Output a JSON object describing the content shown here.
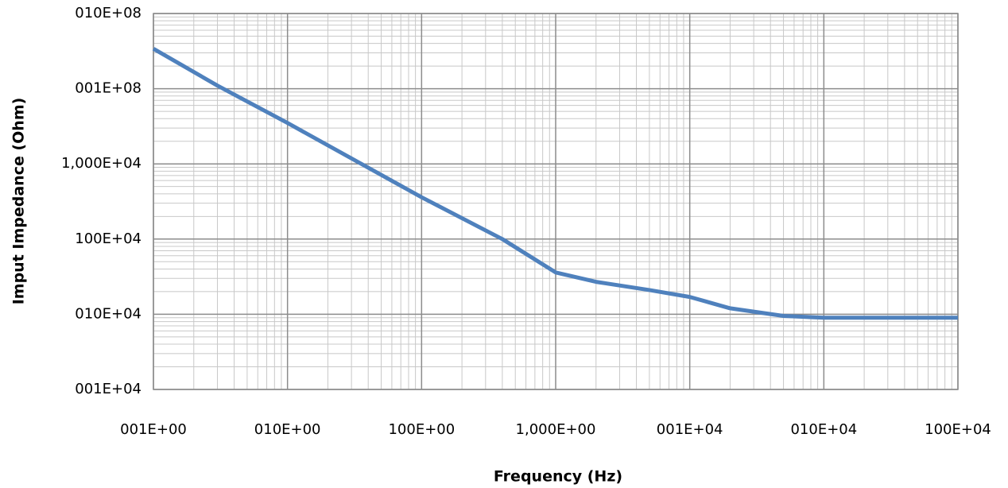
{
  "chart_data": {
    "type": "line",
    "x_label": "Frequency (Hz)",
    "y_label": "Imput Impedance (Ohm)",
    "x_log": true,
    "y_log": true,
    "grid": true,
    "minor_grid": true,
    "xlim": [
      1,
      1000000
    ],
    "ylim": [
      10000,
      1000000000
    ],
    "xticks": [
      {
        "value": 1,
        "label": "001E+00"
      },
      {
        "value": 10,
        "label": "010E+00"
      },
      {
        "value": 100,
        "label": "100E+00"
      },
      {
        "value": 1000,
        "label": "1,000E+00"
      },
      {
        "value": 10000,
        "label": "001E+04"
      },
      {
        "value": 100000,
        "label": "010E+04"
      },
      {
        "value": 1000000,
        "label": "100E+04"
      }
    ],
    "yticks": [
      {
        "value": 10000,
        "label": "001E+04"
      },
      {
        "value": 100000,
        "label": "010E+04"
      },
      {
        "value": 1000000,
        "label": "100E+04"
      },
      {
        "value": 10000000,
        "label": "1,000E+04"
      },
      {
        "value": 100000000,
        "label": "001E+08"
      },
      {
        "value": 1000000000,
        "label": "010E+08"
      }
    ],
    "series": [
      {
        "color": "#4f81bd",
        "x": [
          1,
          3,
          10,
          100,
          400,
          1000,
          2000,
          5000,
          10000,
          20000,
          50000,
          100000,
          1000000
        ],
        "values": [
          340000000,
          110000000,
          35000000,
          3600000,
          1000000,
          360000,
          270000,
          210000,
          170000,
          120000,
          95000,
          90000,
          90000
        ]
      }
    ]
  }
}
